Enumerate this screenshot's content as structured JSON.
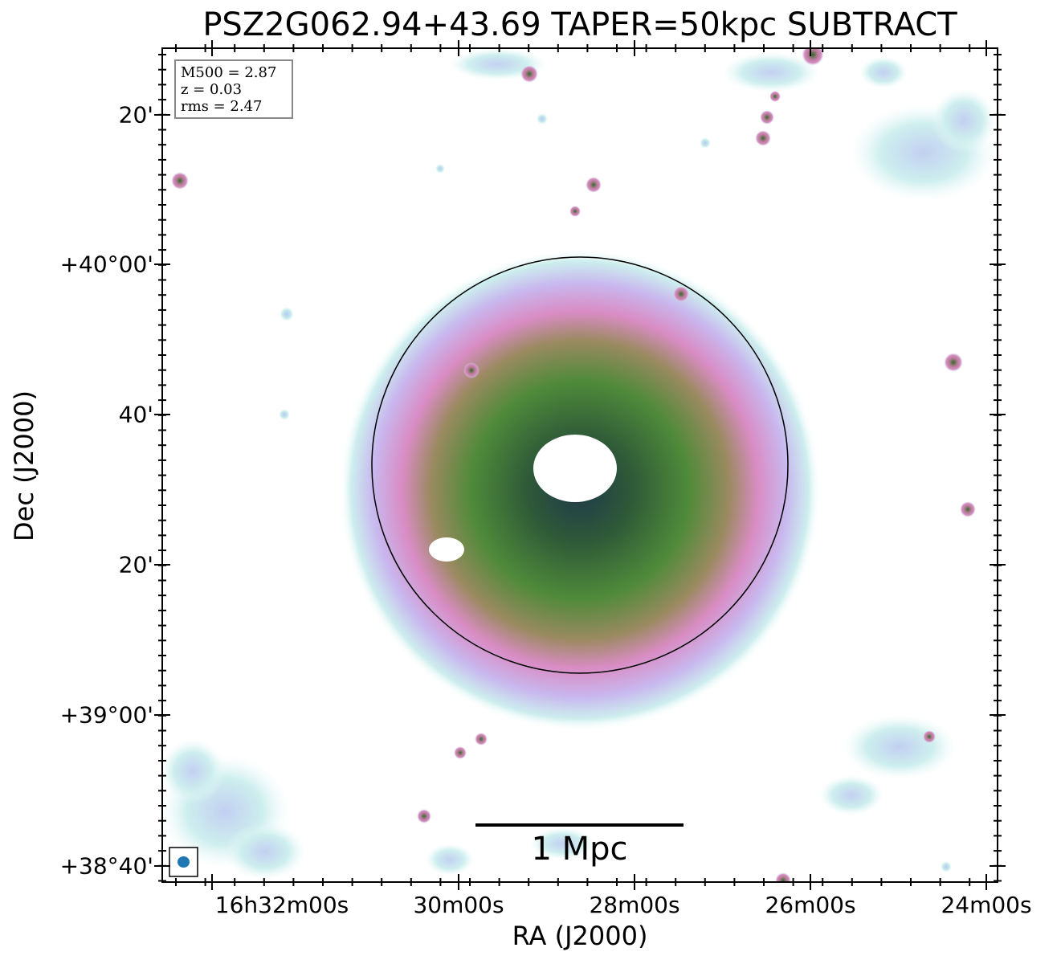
{
  "title": "PSZ2G062.94+43.69 TAPER=50kpc SUBTRACT",
  "axes": {
    "xlabel": "RA (J2000)",
    "ylabel": "Dec (J2000)",
    "xticks": [
      "16h32m00s",
      "30m00s",
      "28m00s",
      "26m00s",
      "24m00s"
    ],
    "yticks": [
      "20'",
      "+40°00'",
      "40'",
      "20'",
      "+39°00'",
      "+38°40'"
    ]
  },
  "info": {
    "mass": "M500 = 2.87",
    "redshift": "z = 0.03",
    "rms": "rms = 2.47"
  },
  "scalebar": {
    "label": "1 Mpc"
  },
  "colors": {
    "faint": "#c6ecec",
    "low": "#b8c4f0",
    "mid": "#d98cc4",
    "high": "#3f7a30",
    "peak": "#1a3050",
    "beam": "#1f77b4"
  }
}
